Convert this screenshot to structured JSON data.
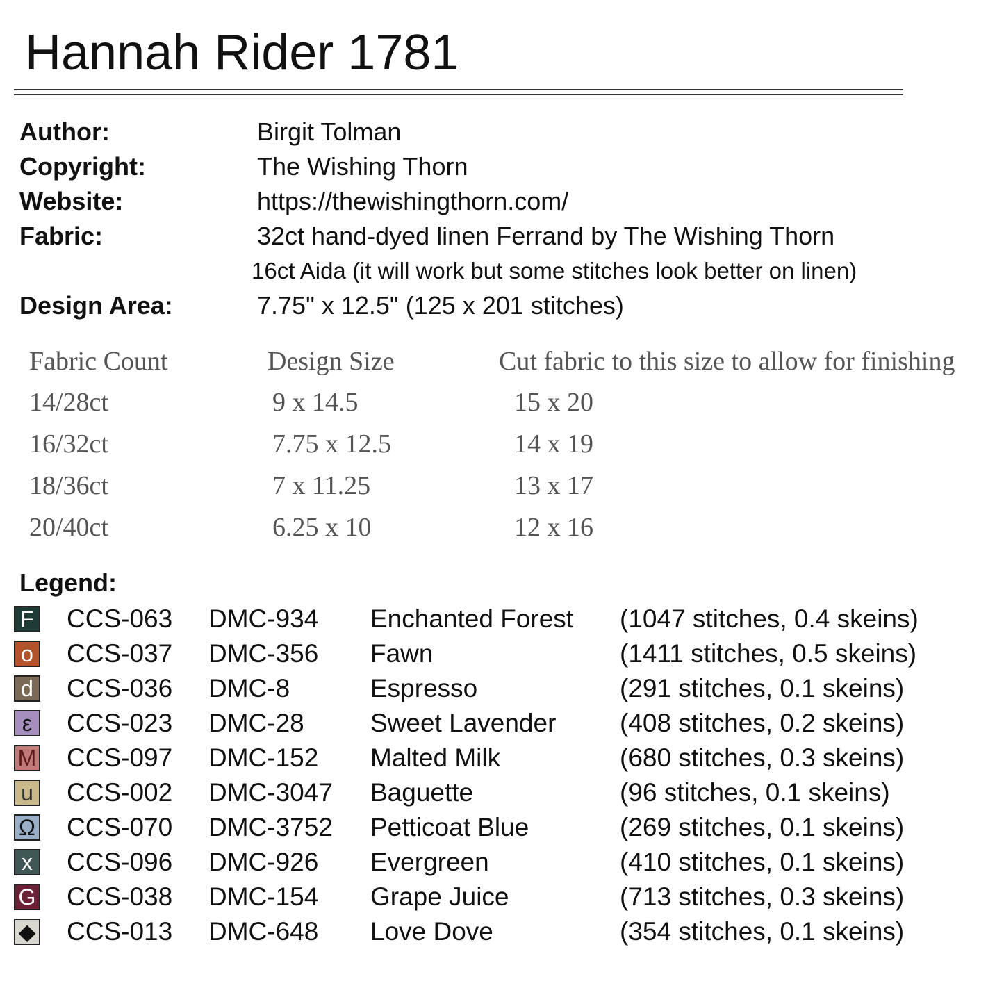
{
  "title": "Hannah Rider 1781",
  "meta": [
    {
      "key": "Author:",
      "value": "Birgit Tolman"
    },
    {
      "key": "Copyright:",
      "value": "The Wishing Thorn"
    },
    {
      "key": "Website:",
      "value": "https://thewishingthorn.com/"
    },
    {
      "key": "Fabric:",
      "value": "32ct hand-dyed linen Ferrand by The Wishing Thorn"
    },
    {
      "key": "",
      "value": "16ct Aida (it will work but some stitches look better on linen)"
    },
    {
      "key": "Design Area:",
      "value": "7.75\" x 12.5\"  (125 x 201 stitches)"
    }
  ],
  "size_table": {
    "headers": [
      "Fabric Count",
      "Design Size",
      "Cut fabric to this size to allow for finishing"
    ],
    "rows": [
      [
        "14/28ct",
        "9 x 14.5",
        "15 x 20"
      ],
      [
        "16/32ct",
        "7.75 x 12.5",
        "14 x 19"
      ],
      [
        "18/36ct",
        "7 x 11.25",
        "13 x 17"
      ],
      [
        "20/40ct",
        "6.25 x 10",
        "12 x 16"
      ]
    ]
  },
  "legend": {
    "title": "Legend:",
    "items": [
      {
        "symbol": "F",
        "color": "#1e3b36",
        "fg": "#ffffff",
        "ccs": "CCS-063",
        "dmc": "DMC-934",
        "name": "Enchanted Forest",
        "count": "(1047 stitches, 0.4 skeins)"
      },
      {
        "symbol": "o",
        "color": "#b3532a",
        "fg": "#ffffff",
        "ccs": "CCS-037",
        "dmc": "DMC-356",
        "name": "Fawn",
        "count": "(1411 stitches, 0.5 skeins)"
      },
      {
        "symbol": "d",
        "color": "#7a6a55",
        "fg": "#ffffff",
        "ccs": "CCS-036",
        "dmc": "DMC-8",
        "name": "Espresso",
        "count": "(291 stitches, 0.1 skeins)"
      },
      {
        "symbol": "ε",
        "color": "#a48fbe",
        "fg": "#111111",
        "ccs": "CCS-023",
        "dmc": "DMC-28",
        "name": "Sweet Lavender",
        "count": "(408 stitches, 0.2 skeins)"
      },
      {
        "symbol": "M",
        "color": "#c07a78",
        "fg": "#5a1a1a",
        "ccs": "CCS-097",
        "dmc": "DMC-152",
        "name": "Malted Milk",
        "count": "(680 stitches, 0.3 skeins)"
      },
      {
        "symbol": "u",
        "color": "#c9b98a",
        "fg": "#333333",
        "ccs": "CCS-002",
        "dmc": "DMC-3047",
        "name": "Baguette",
        "count": "(96 stitches, 0.1 skeins)"
      },
      {
        "symbol": "Ω",
        "color": "#9ab0c8",
        "fg": "#111111",
        "ccs": "CCS-070",
        "dmc": "DMC-3752",
        "name": "Petticoat Blue",
        "count": "(269 stitches, 0.1 skeins)"
      },
      {
        "symbol": "x",
        "color": "#3f5755",
        "fg": "#ffffff",
        "ccs": "CCS-096",
        "dmc": "DMC-926",
        "name": "Evergreen",
        "count": "(410 stitches, 0.1 skeins)"
      },
      {
        "symbol": "G",
        "color": "#6a2035",
        "fg": "#ffffff",
        "ccs": "CCS-038",
        "dmc": "DMC-154",
        "name": "Grape Juice",
        "count": "(713 stitches, 0.3 skeins)"
      },
      {
        "symbol": "◆",
        "color": "#d8d8d0",
        "fg": "#111111",
        "ccs": "CCS-013",
        "dmc": "DMC-648",
        "name": "Love Dove",
        "count": "(354 stitches, 0.1 skeins)"
      }
    ]
  }
}
